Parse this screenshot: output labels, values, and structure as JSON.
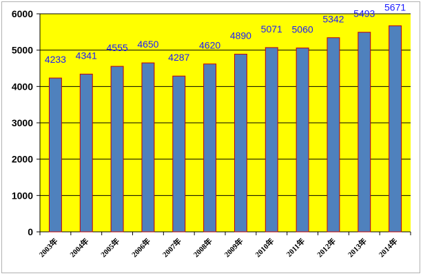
{
  "chart_data": {
    "type": "bar",
    "categories": [
      "2003年",
      "2004年",
      "2005年",
      "2006年",
      "2007年",
      "2008年",
      "2009年",
      "2010年",
      "2011年",
      "2012年",
      "2013年",
      "2014年"
    ],
    "values": [
      4233,
      4341,
      4555,
      4650,
      4287,
      4620,
      4890,
      5071,
      5060,
      5342,
      5493,
      5671
    ],
    "data_labels": [
      "4233",
      "4341",
      "4555",
      "4650",
      "4287",
      "4620",
      "4890",
      "5071",
      "5060",
      "5342",
      "5493",
      "5671"
    ],
    "y_ticks": [
      "0",
      "1000",
      "2000",
      "3000",
      "4000",
      "5000",
      "6000"
    ],
    "ylim": [
      0,
      6000
    ],
    "title": "",
    "xlabel": "",
    "ylabel": "",
    "grid": true,
    "legend": "none",
    "colors": {
      "plot_background": "#ffff00",
      "bar_fill": "#4f81bd",
      "bar_edge": "#c00000",
      "gridline": "#000000",
      "data_label": "#1a1aff"
    }
  }
}
